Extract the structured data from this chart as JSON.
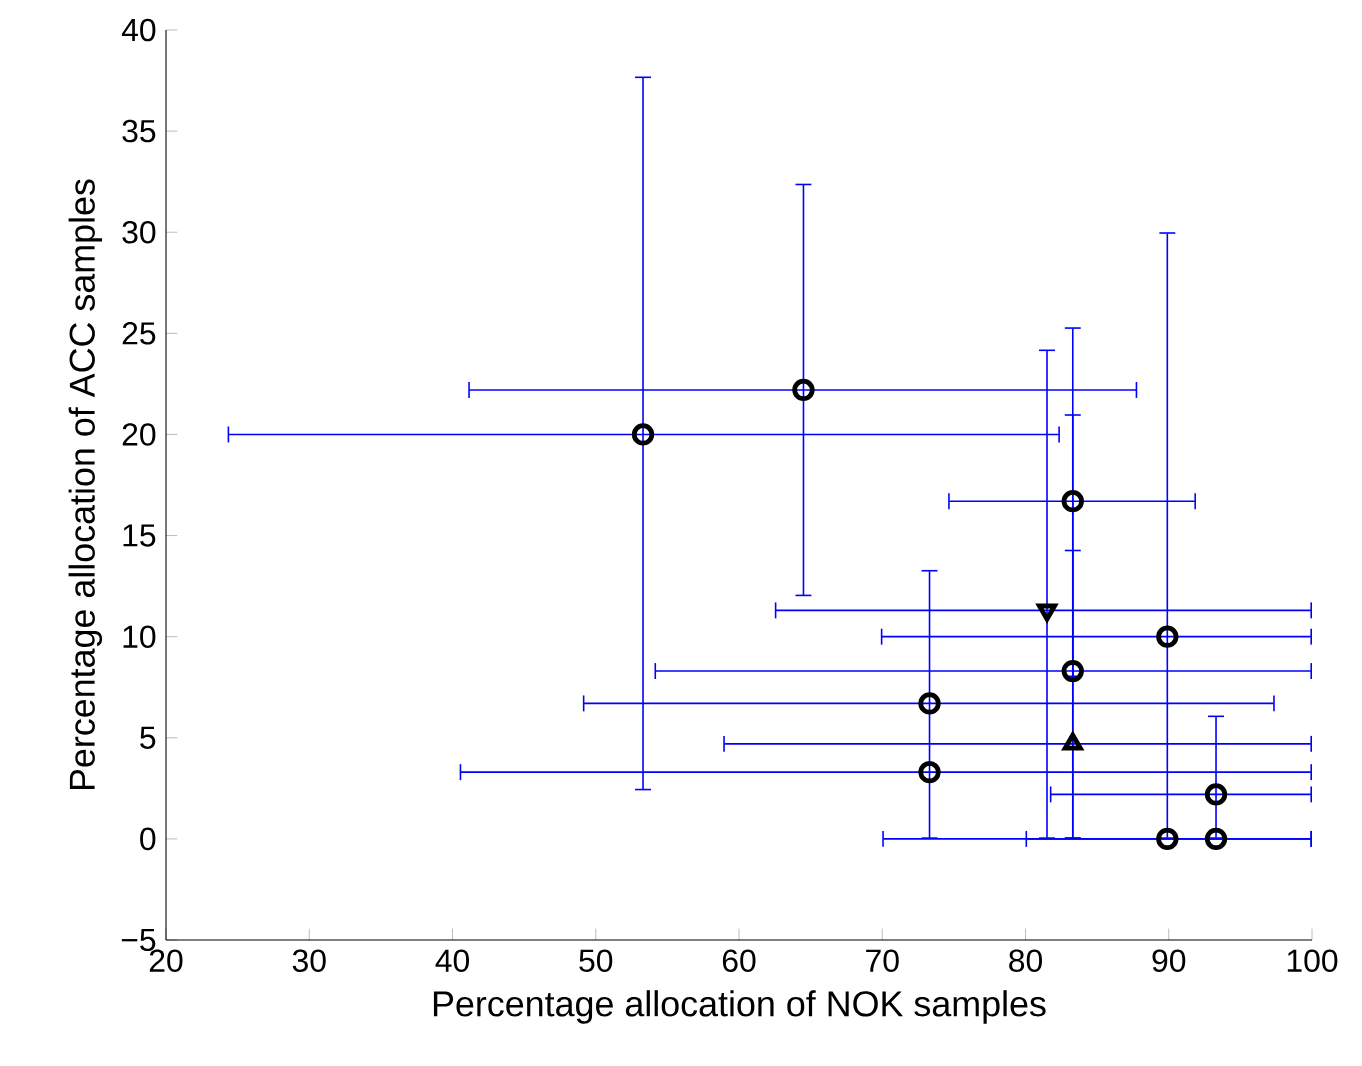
{
  "chart_data": {
    "type": "scatter",
    "xlabel": "Percentage allocation of NOK samples",
    "ylabel": "Percentage allocation of ACC samples",
    "xlim": [
      20,
      100
    ],
    "ylim": [
      -5,
      40
    ],
    "xticks": [
      20,
      30,
      40,
      50,
      60,
      70,
      80,
      90,
      100
    ],
    "yticks": [
      {
        "value": -5,
        "label": "−5"
      },
      0,
      5,
      10,
      15,
      20,
      25,
      30,
      35,
      40
    ],
    "series": [
      {
        "marker": "circle",
        "color": "#000000",
        "x": [
          53.3,
          64.5,
          83.3,
          89.9,
          83.3,
          73.3,
          73.3,
          93.3,
          89.9,
          93.3
        ],
        "values": [
          20,
          22.2,
          16.7,
          10,
          8.3,
          6.7,
          3.3,
          2.2,
          0,
          0
        ],
        "xerrors": [
          [
            24.3,
            82.4
          ],
          [
            41.1,
            87.8
          ],
          [
            74.6,
            91.9
          ],
          [
            69.9,
            100
          ],
          [
            54.1,
            100
          ],
          [
            49.1,
            97.4
          ],
          [
            40.5,
            100
          ],
          [
            81.7,
            100
          ],
          [
            70,
            100
          ],
          [
            80,
            100
          ]
        ],
        "errors": [
          [
            2.4,
            37.7
          ],
          [
            12,
            32.4
          ],
          [
            8,
            25.3
          ],
          [
            0,
            30
          ],
          [
            0,
            21
          ],
          [
            0,
            13.3
          ],
          null,
          [
            0,
            6.1
          ],
          null,
          null
        ]
      },
      {
        "marker": "triangle-down",
        "color": "#000000",
        "x": [
          81.5
        ],
        "values": [
          11.3
        ],
        "xerrors": [
          [
            62.5,
            100
          ]
        ],
        "errors": [
          [
            0,
            24.2
          ]
        ]
      },
      {
        "marker": "triangle",
        "color": "#000000",
        "x": [
          83.3
        ],
        "values": [
          4.7
        ],
        "xerrors": [
          [
            58.9,
            100
          ]
        ],
        "errors": [
          [
            0,
            14.3
          ]
        ]
      }
    ]
  }
}
